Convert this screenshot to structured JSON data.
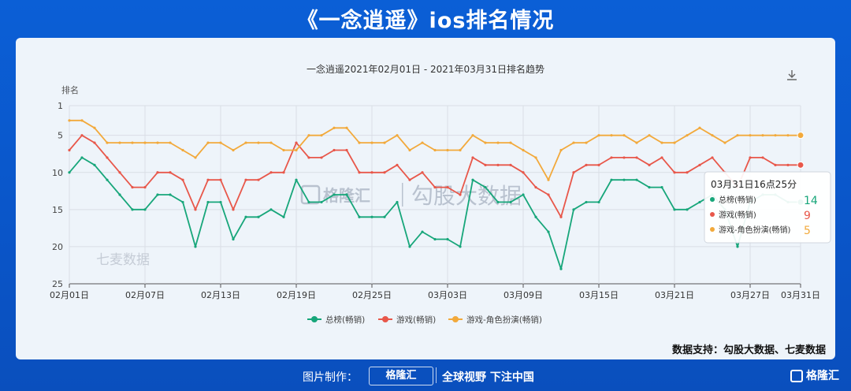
{
  "page": {
    "title": "《一念逍遥》ios排名情况"
  },
  "chart": {
    "title": "一念逍遥2021年02月01日 - 2021年03月31日排名趋势",
    "ylabel": "排名",
    "source": "数据支持：勾股大数据、七麦数据",
    "watermark_main": "勾股大数据",
    "watermark_brand": "格隆汇",
    "watermark_qimai": "七麦数据",
    "tooltip": {
      "title": "03月31日16点25分",
      "rows": [
        {
          "name": "总榜(畅销)",
          "value": "14"
        },
        {
          "name": "游戏(畅销)",
          "value": "9"
        },
        {
          "name": "游戏-角色扮演(畅销)",
          "value": "5"
        }
      ]
    },
    "colors": {
      "overall": "#17a67a",
      "game": "#e8574a",
      "rpg": "#f2a93b"
    }
  },
  "chart_data": {
    "type": "line",
    "title": "一念逍遥2021年02月01日 - 2021年03月31日排名趋势",
    "ylabel": "排名",
    "y_inverted": true,
    "ylim": [
      1,
      25
    ],
    "yticks": [
      "1",
      "5",
      "10",
      "15",
      "20",
      "25"
    ],
    "x_ticks": [
      "02月01日",
      "02月07日",
      "02月13日",
      "02月19日",
      "02月25日",
      "03月03日",
      "03月09日",
      "03月15日",
      "03月21日",
      "03月27日",
      "03月31日"
    ],
    "x_start": "2021-02-01",
    "x_end": "2021-03-31",
    "grid": true,
    "legend_position": "bottom",
    "series": [
      {
        "name": "总榜(畅销)",
        "values": [
          10,
          8,
          9,
          11,
          13,
          15,
          15,
          13,
          13,
          14,
          20,
          14,
          14,
          19,
          16,
          16,
          15,
          16,
          11,
          14,
          14,
          13,
          13,
          16,
          16,
          16,
          14,
          20,
          18,
          19,
          19,
          20,
          11,
          12,
          14,
          14,
          13,
          16,
          18,
          23,
          15,
          14,
          14,
          11,
          11,
          11,
          12,
          12,
          15,
          15,
          14,
          13,
          15,
          20,
          14,
          13,
          13,
          14,
          14
        ]
      },
      {
        "name": "游戏(畅销)",
        "values": [
          7,
          5,
          6,
          8,
          10,
          12,
          12,
          10,
          10,
          11,
          15,
          11,
          11,
          15,
          11,
          11,
          10,
          10,
          6,
          8,
          8,
          7,
          7,
          10,
          10,
          10,
          9,
          11,
          10,
          12,
          12,
          13,
          8,
          9,
          9,
          9,
          10,
          12,
          13,
          16,
          10,
          9,
          9,
          8,
          8,
          8,
          9,
          8,
          10,
          10,
          9,
          8,
          10,
          12,
          8,
          8,
          9,
          9,
          9
        ]
      },
      {
        "name": "游戏-角色扮演(畅销)",
        "values": [
          3,
          3,
          4,
          6,
          6,
          6,
          6,
          6,
          6,
          7,
          8,
          6,
          6,
          7,
          6,
          6,
          6,
          7,
          7,
          5,
          5,
          4,
          4,
          6,
          6,
          6,
          5,
          7,
          6,
          7,
          7,
          7,
          5,
          6,
          6,
          6,
          7,
          8,
          11,
          7,
          6,
          6,
          5,
          5,
          5,
          6,
          5,
          6,
          6,
          5,
          4,
          5,
          6,
          5,
          5,
          5,
          5,
          5,
          5
        ]
      }
    ]
  }
}
